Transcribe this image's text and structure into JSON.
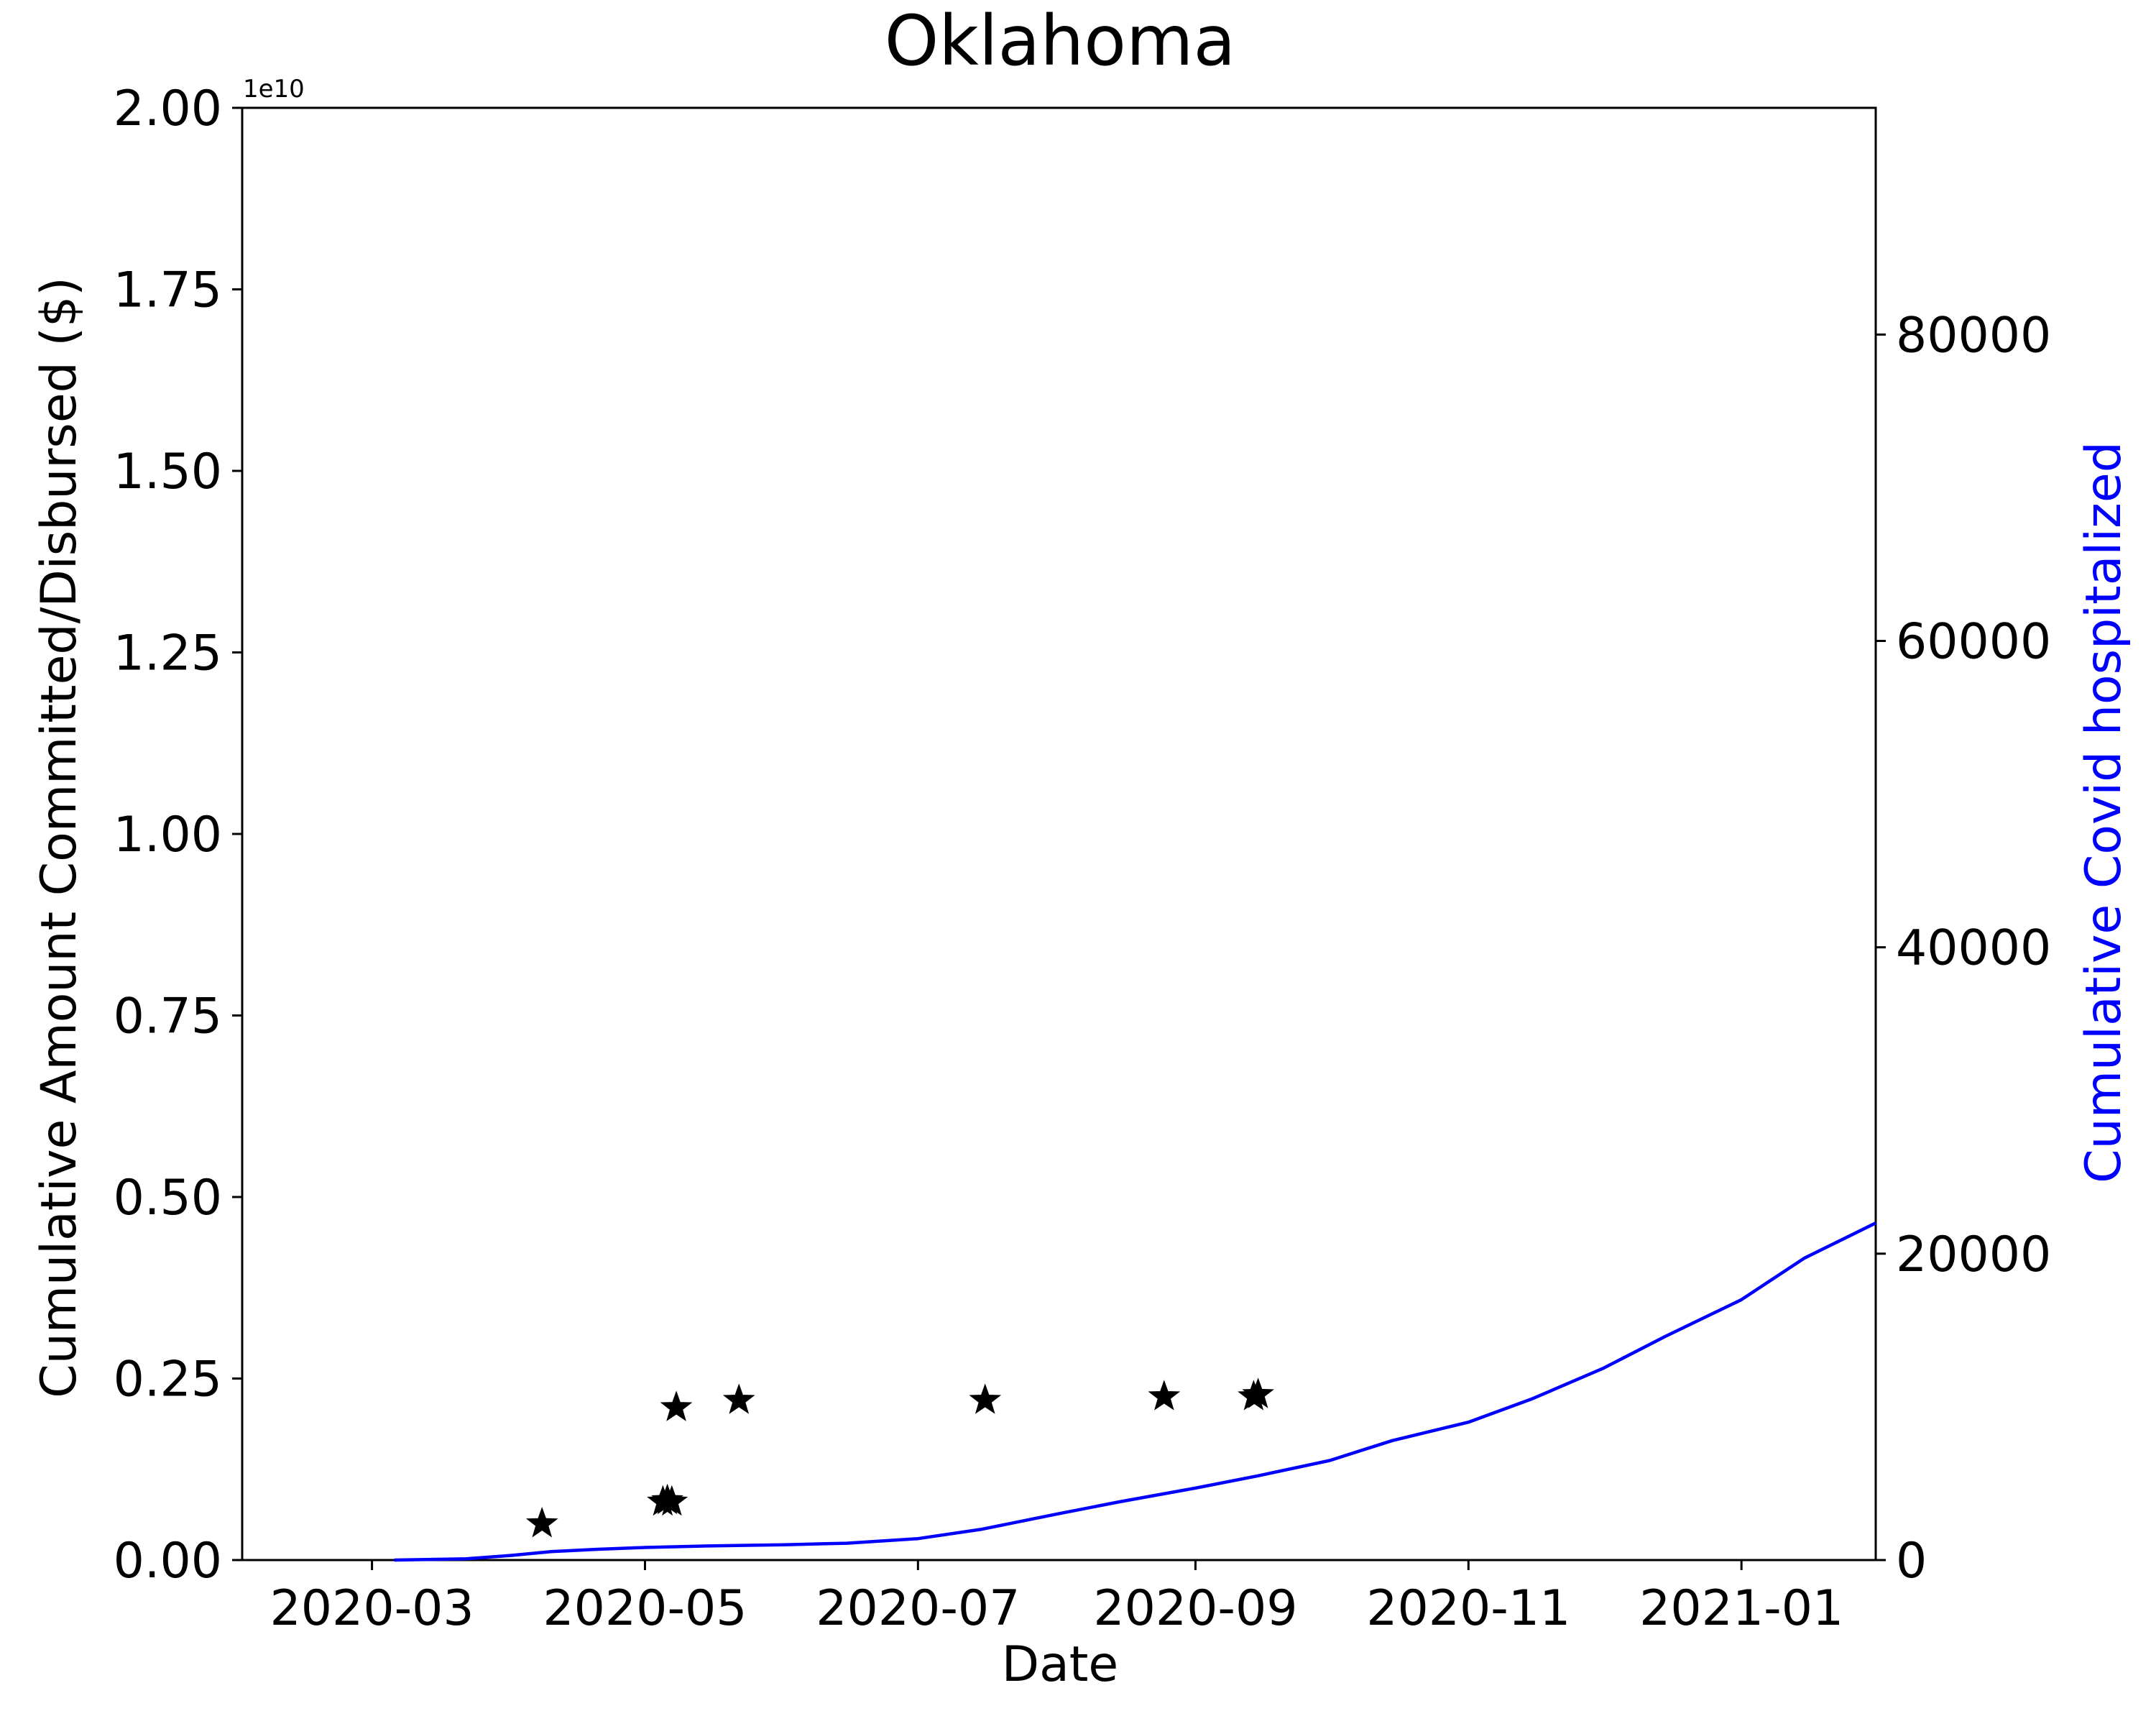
{
  "chart_data": {
    "type": "scatter+line",
    "title": "Oklahoma",
    "xlabel": "Date",
    "ylabel_left": "Cumulative Amount Committed/Disbursed ($)",
    "ylabel_right": "Cumulative Covid hospitalized",
    "left_axis_offset_label": "1e10",
    "xlim": [
      "2020-02-01",
      "2021-01-31"
    ],
    "ylim_left": [
      0,
      2.0
    ],
    "ylim_right": [
      0,
      94800
    ],
    "x_ticks": [
      {
        "date": "2020-03-01",
        "label": "2020-03"
      },
      {
        "date": "2020-05-01",
        "label": "2020-05"
      },
      {
        "date": "2020-07-01",
        "label": "2020-07"
      },
      {
        "date": "2020-09-01",
        "label": "2020-09"
      },
      {
        "date": "2020-11-01",
        "label": "2020-11"
      },
      {
        "date": "2021-01-01",
        "label": "2021-01"
      }
    ],
    "y_ticks_left": [
      "0.00",
      "0.25",
      "0.50",
      "0.75",
      "1.00",
      "1.25",
      "1.50",
      "1.75",
      "2.00"
    ],
    "y_ticks_right": [
      "0",
      "20000",
      "40000",
      "60000",
      "80000"
    ],
    "series": [
      {
        "name": "",
        "kind": "scatter",
        "marker": "star",
        "color": "#000000",
        "axis": "left",
        "units": "1e10 $",
        "points": [
          {
            "x": "2020-04-08",
            "y": 0.05
          },
          {
            "x": "2020-05-05",
            "y": 0.08
          },
          {
            "x": "2020-05-06",
            "y": 0.082
          },
          {
            "x": "2020-05-07",
            "y": 0.08
          },
          {
            "x": "2020-05-08",
            "y": 0.21
          },
          {
            "x": "2020-05-22",
            "y": 0.22
          },
          {
            "x": "2020-07-16",
            "y": 0.22
          },
          {
            "x": "2020-08-25",
            "y": 0.225
          },
          {
            "x": "2020-09-14",
            "y": 0.225
          },
          {
            "x": "2020-09-15",
            "y": 0.228
          }
        ]
      },
      {
        "name": "",
        "kind": "line",
        "color": "#0000ff",
        "axis": "right",
        "points": [
          {
            "x": "2020-03-06",
            "y": 0
          },
          {
            "x": "2020-03-22",
            "y": 80
          },
          {
            "x": "2020-04-01",
            "y": 300
          },
          {
            "x": "2020-04-10",
            "y": 550
          },
          {
            "x": "2020-04-20",
            "y": 700
          },
          {
            "x": "2020-05-01",
            "y": 820
          },
          {
            "x": "2020-05-15",
            "y": 920
          },
          {
            "x": "2020-06-01",
            "y": 1000
          },
          {
            "x": "2020-06-15",
            "y": 1100
          },
          {
            "x": "2020-07-01",
            "y": 1400
          },
          {
            "x": "2020-07-15",
            "y": 2000
          },
          {
            "x": "2020-08-01",
            "y": 3000
          },
          {
            "x": "2020-08-15",
            "y": 3800
          },
          {
            "x": "2020-09-01",
            "y": 4700
          },
          {
            "x": "2020-09-15",
            "y": 5500
          },
          {
            "x": "2020-10-01",
            "y": 6500
          },
          {
            "x": "2020-10-15",
            "y": 7800
          },
          {
            "x": "2020-11-01",
            "y": 9000
          },
          {
            "x": "2020-11-15",
            "y": 10500
          },
          {
            "x": "2020-12-01",
            "y": 12500
          },
          {
            "x": "2020-12-15",
            "y": 14600
          },
          {
            "x": "2021-01-01",
            "y": 17000
          },
          {
            "x": "2021-01-15",
            "y": 19700
          },
          {
            "x": "2021-01-31",
            "y": 22000
          }
        ]
      }
    ]
  }
}
